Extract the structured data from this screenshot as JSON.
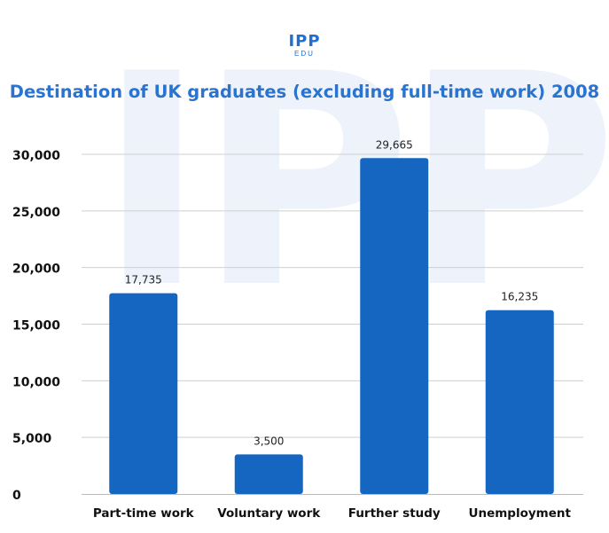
{
  "logo": {
    "main": "IPP",
    "sub": "EDU"
  },
  "chart_data": {
    "type": "bar",
    "title": "Destination of UK graduates (excluding full-time work) 2008",
    "xlabel": "",
    "ylabel": "",
    "categories": [
      "Part-time work",
      "Voluntary work",
      "Further study",
      "Unemployment"
    ],
    "values": [
      17735,
      3500,
      29665,
      16235
    ],
    "data_labels": [
      "17,735",
      "3,500",
      "29,665",
      "16,235"
    ],
    "ylim": [
      0,
      30000
    ],
    "yticks": [
      0,
      5000,
      10000,
      15000,
      20000,
      25000,
      30000
    ],
    "ytick_labels": [
      "0",
      "5,000",
      "10,000",
      "15,000",
      "20,000",
      "25,000",
      "30,000"
    ],
    "grid": true,
    "bar_color": "#1566c0",
    "title_color": "#2a74cf"
  }
}
